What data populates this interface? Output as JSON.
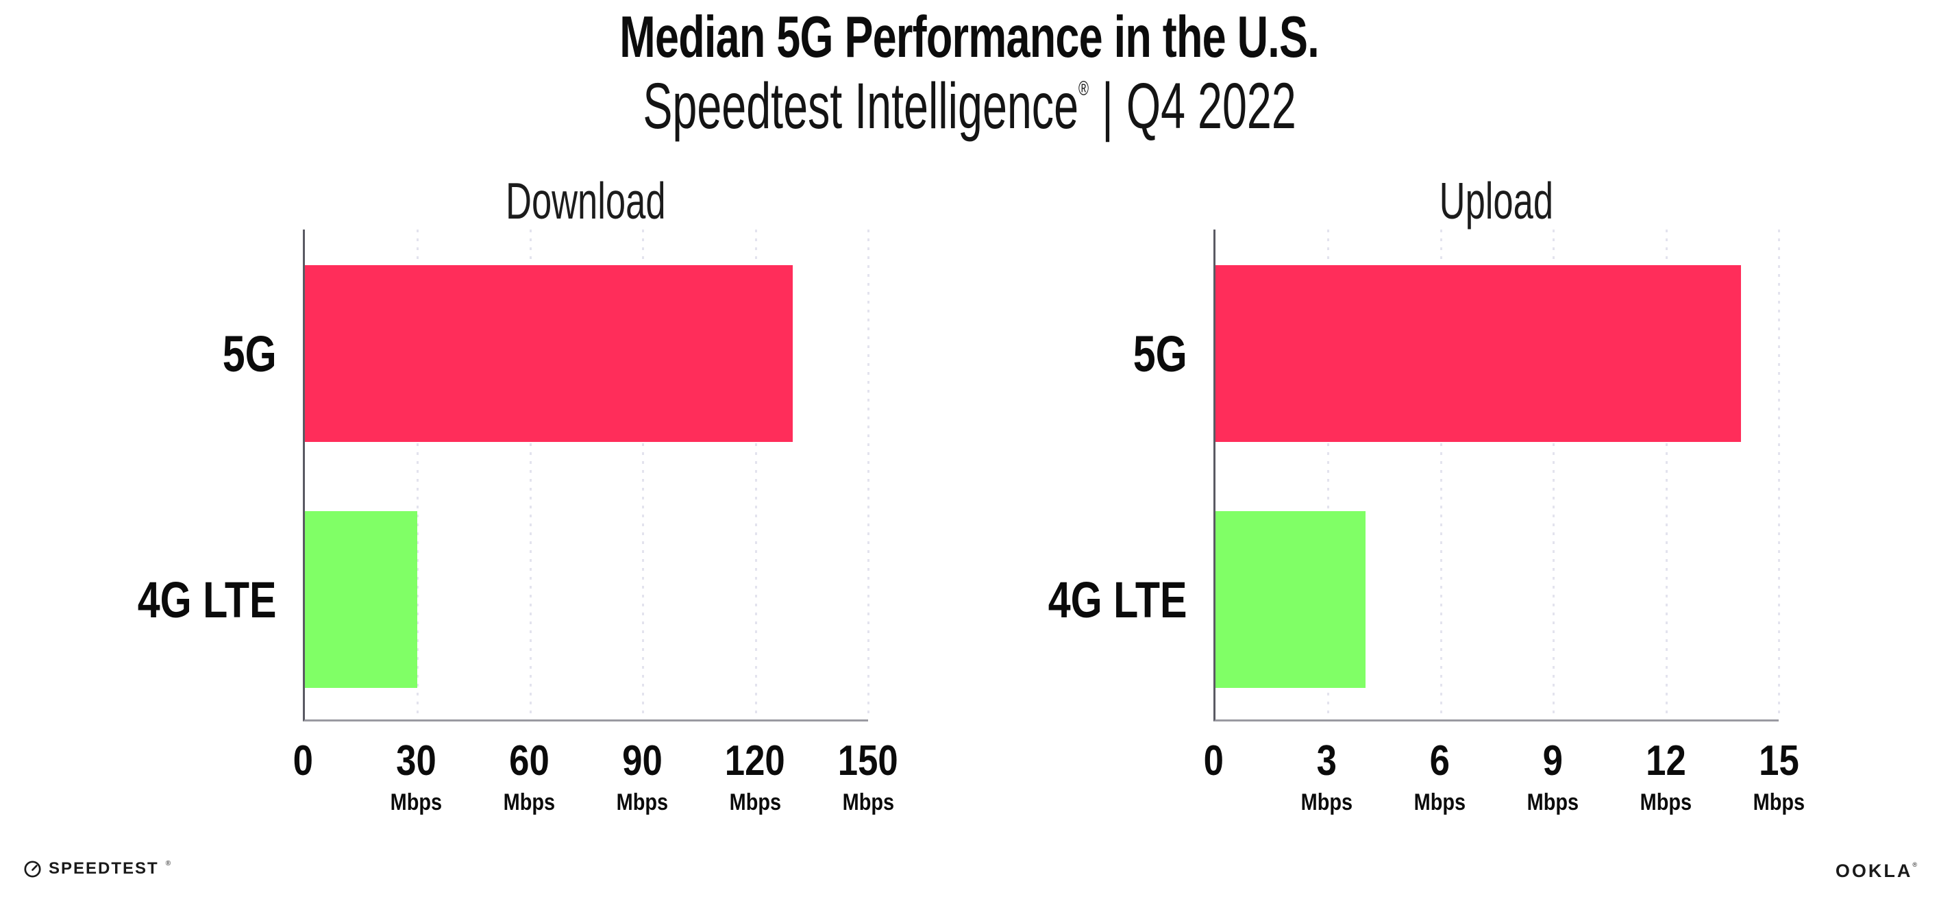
{
  "header": {
    "title": "Median 5G Performance in the U.S.",
    "subtitle": {
      "brand": "Speedtest Intelligence",
      "registered_mark": "®",
      "separator": "|",
      "period": "Q4 2022"
    }
  },
  "chart_data": [
    {
      "type": "bar",
      "orientation": "horizontal",
      "title": "Download",
      "categories": [
        "5G",
        "4G LTE"
      ],
      "values": [
        130,
        30
      ],
      "unit": "Mbps",
      "xlabel": "",
      "ylabel": "",
      "xlim": [
        0,
        150
      ],
      "xticks": [
        0,
        30,
        60,
        90,
        120,
        150
      ],
      "xtick_unit": "Mbps",
      "bar_colors": [
        "#ff2d5a",
        "#80ff66"
      ],
      "grid": "vertical-dotted",
      "legend": "none"
    },
    {
      "type": "bar",
      "orientation": "horizontal",
      "title": "Upload",
      "categories": [
        "5G",
        "4G LTE"
      ],
      "values": [
        14,
        4
      ],
      "unit": "Mbps",
      "xlabel": "",
      "ylabel": "",
      "xlim": [
        0,
        15
      ],
      "xticks": [
        0,
        3,
        6,
        9,
        12,
        15
      ],
      "xtick_unit": "Mbps",
      "bar_colors": [
        "#ff2d5a",
        "#80ff66"
      ],
      "grid": "vertical-dotted",
      "legend": "none"
    }
  ],
  "colors": {
    "bar_5g": "#ff2d5a",
    "bar_4g_lte": "#80ff66",
    "gridline": "#e3e3ee",
    "y_axis": "#5a5a63",
    "x_axis": "#9a9aa1",
    "text": "#0c0c0c",
    "background": "#ffffff"
  },
  "footer": {
    "speedtest_wordmark": "SPEEDTEST",
    "speedtest_mark": "®",
    "ookla_wordmark": "OOKLA",
    "ookla_mark": "®"
  }
}
